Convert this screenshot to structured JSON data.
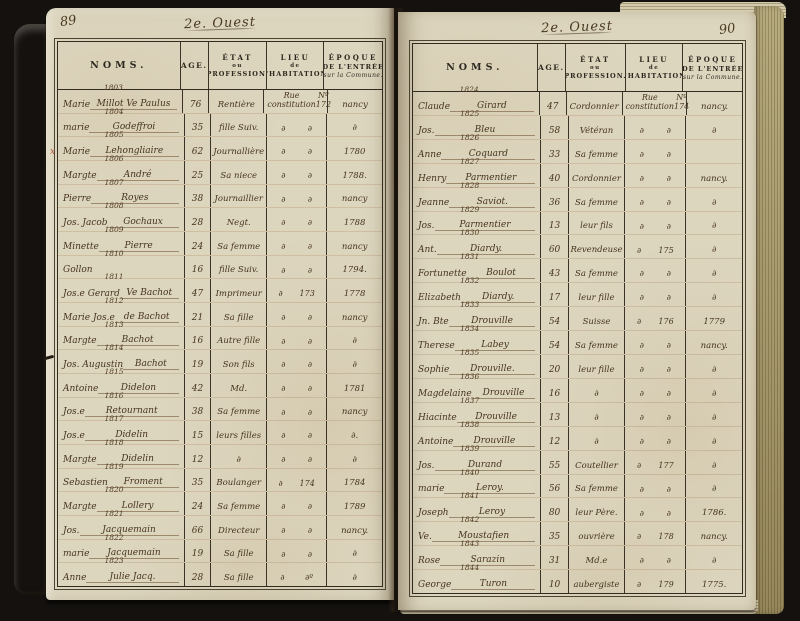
{
  "document_type": "handwritten population register (two-page spread)",
  "colors": {
    "background": "#14110e",
    "paper": "#ddd6bf",
    "ink": "#46341e",
    "border": "#322b20",
    "rule_red": "#b0553a"
  },
  "table_header": {
    "noms": "NOMS.",
    "age": "AGE.",
    "etat": {
      "l1": "ÉTAT",
      "l2": "ou",
      "l3": "PROFESSION."
    },
    "lieu": {
      "l1": "LIEU",
      "l2": "de",
      "l3": "L'HABITATION."
    },
    "epoque": {
      "l1": "ÉPOQUE",
      "l2": "DE L'ENTRÉE",
      "l3": "sur la Commune."
    }
  },
  "left_page": {
    "folio": "89",
    "heading": "2e. Ouest",
    "rows": [
      {
        "num": "1803",
        "first": "Marie",
        "last": "Millot Ve Paulus",
        "age": "76",
        "etat": "Rentière",
        "lieu": "Rue constitution",
        "lieu_no": "Nº 172",
        "epoque": "nancy"
      },
      {
        "num": "1804",
        "first": "marie",
        "last": "Godeffroi",
        "age": "35",
        "etat": "fille Suiv.",
        "lieu": "∂",
        "lieu_no": "∂",
        "epoque": "∂"
      },
      {
        "num": "1805",
        "first": "Marie",
        "last": "Lehongliaire",
        "age": "62",
        "etat": "Journallière",
        "lieu": "∂",
        "lieu_no": "∂",
        "epoque": "1780"
      },
      {
        "num": "1806",
        "first": "Margte",
        "last": "André",
        "age": "25",
        "etat": "Sa niece",
        "lieu": "∂",
        "lieu_no": "∂",
        "epoque": "1788."
      },
      {
        "num": "1807",
        "first": "Pierre",
        "last": "Royes",
        "age": "38",
        "etat": "Journaillier",
        "lieu": "∂",
        "lieu_no": "∂",
        "epoque": "nancy"
      },
      {
        "num": "1808",
        "first": "Jos. Jacob",
        "last": "Gochaux",
        "age": "28",
        "etat": "Negt.",
        "lieu": "∂",
        "lieu_no": "∂",
        "epoque": "1788"
      },
      {
        "num": "1809",
        "first": "Minette",
        "last": "Pierre",
        "age": "24",
        "etat": "Sa femme",
        "lieu": "∂",
        "lieu_no": "∂",
        "epoque": "nancy"
      },
      {
        "num": "1810",
        "first": "Gollon",
        "last": "",
        "age": "16",
        "etat": "fille Suiv.",
        "lieu": "∂",
        "lieu_no": "∂",
        "epoque": "1794."
      },
      {
        "num": "1811",
        "first": "Jos.e Gerard",
        "last": "Ve Bachot",
        "age": "47",
        "etat": "Imprimeur",
        "lieu": "∂",
        "lieu_no": "173",
        "epoque": "1778"
      },
      {
        "num": "1812",
        "first": "Marie Jos.e",
        "last": "de Bachot",
        "age": "21",
        "etat": "Sa fille",
        "lieu": "∂",
        "lieu_no": "∂",
        "epoque": "nancy"
      },
      {
        "num": "1813",
        "first": "Margte",
        "last": "Bachot",
        "age": "16",
        "etat": "Autre fille",
        "lieu": "∂",
        "lieu_no": "∂",
        "epoque": "∂"
      },
      {
        "num": "1814",
        "first": "Jos. Augustin",
        "last": "Bachot",
        "age": "19",
        "etat": "Son fils",
        "lieu": "∂",
        "lieu_no": "∂",
        "epoque": "∂"
      },
      {
        "num": "1815",
        "first": "Antoine",
        "last": "Didelon",
        "age": "42",
        "etat": "Md.",
        "lieu": "∂",
        "lieu_no": "∂",
        "epoque": "1781"
      },
      {
        "num": "1816",
        "first": "Jos.e",
        "last": "Retournant",
        "age": "38",
        "etat": "Sa femme",
        "lieu": "∂",
        "lieu_no": "∂",
        "epoque": "nancy"
      },
      {
        "num": "1817",
        "first": "Jos.e",
        "last": "Didelin",
        "age": "15",
        "etat": "leurs filles",
        "lieu": "∂",
        "lieu_no": "∂",
        "epoque": "∂."
      },
      {
        "num": "1818",
        "first": "Margte",
        "last": "Didelin",
        "age": "12",
        "etat": "∂",
        "lieu": "∂",
        "lieu_no": "∂",
        "epoque": "∂"
      },
      {
        "num": "1819",
        "first": "Sebastien",
        "last": "Froment",
        "age": "35",
        "etat": "Boulanger",
        "lieu": "∂",
        "lieu_no": "174",
        "epoque": "1784"
      },
      {
        "num": "1820",
        "first": "Margte",
        "last": "Lollery",
        "age": "24",
        "etat": "Sa femme",
        "lieu": "∂",
        "lieu_no": "∂",
        "epoque": "1789"
      },
      {
        "num": "1821",
        "first": "Jos.",
        "last": "Jacquemain",
        "age": "66",
        "etat": "Directeur",
        "lieu": "∂",
        "lieu_no": "∂",
        "epoque": "nancy."
      },
      {
        "num": "1822",
        "first": "marie",
        "last": "Jacquemain",
        "age": "19",
        "etat": "Sa fille",
        "lieu": "∂",
        "lieu_no": "∂",
        "epoque": "∂"
      },
      {
        "num": "1823",
        "first": "Anne",
        "last": "Julie Jacq.",
        "age": "28",
        "etat": "Sa fille",
        "lieu": "∂",
        "lieu_no": "∂º",
        "epoque": "∂"
      }
    ]
  },
  "right_page": {
    "folio": "90",
    "heading": "2e. Ouest",
    "rows": [
      {
        "num": "1824",
        "first": "Claude",
        "last": "Girard",
        "age": "47",
        "etat": "Cordonnier",
        "lieu": "Rue constitution",
        "lieu_no": "Nº 174",
        "epoque": "nancy."
      },
      {
        "num": "1825",
        "first": "Jos.",
        "last": "Bleu",
        "age": "58",
        "etat": "Vétéran",
        "lieu": "∂",
        "lieu_no": "∂",
        "epoque": "∂"
      },
      {
        "num": "1826",
        "first": "Anne",
        "last": "Coquard",
        "age": "33",
        "etat": "Sa femme",
        "lieu": "∂",
        "lieu_no": "∂",
        "epoque": ""
      },
      {
        "num": "1827",
        "first": "Henry",
        "last": "Parmentier",
        "age": "40",
        "etat": "Cordonnier",
        "lieu": "∂",
        "lieu_no": "∂",
        "epoque": "nancy."
      },
      {
        "num": "1828",
        "first": "Jeanne",
        "last": "Saviot.",
        "age": "36",
        "etat": "Sa femme",
        "lieu": "∂",
        "lieu_no": "∂",
        "epoque": "∂"
      },
      {
        "num": "1829",
        "first": "Jos.",
        "last": "Parmentier",
        "age": "13",
        "etat": "leur fils",
        "lieu": "∂",
        "lieu_no": "∂",
        "epoque": "∂"
      },
      {
        "num": "1830",
        "first": "Ant.",
        "last": "Diardy.",
        "age": "60",
        "etat": "Revendeuse",
        "lieu": "∂",
        "lieu_no": "175",
        "epoque": "∂"
      },
      {
        "num": "1831",
        "first": "Fortunette",
        "last": "Boulot",
        "age": "43",
        "etat": "Sa femme",
        "lieu": "∂",
        "lieu_no": "∂",
        "epoque": "∂"
      },
      {
        "num": "1832",
        "first": "Elizabeth",
        "last": "Diardy.",
        "age": "17",
        "etat": "leur fille",
        "lieu": "∂",
        "lieu_no": "∂",
        "epoque": "∂"
      },
      {
        "num": "1833",
        "first": "Jn. Bte",
        "last": "Drouville",
        "age": "54",
        "etat": "Suisse",
        "lieu": "∂",
        "lieu_no": "176",
        "epoque": "1779"
      },
      {
        "num": "1834",
        "first": "Therese",
        "last": "Labey",
        "age": "54",
        "etat": "Sa femme",
        "lieu": "∂",
        "lieu_no": "∂",
        "epoque": "nancy."
      },
      {
        "num": "1835",
        "first": "Sophie",
        "last": "Drouville.",
        "age": "20",
        "etat": "leur fille",
        "lieu": "∂",
        "lieu_no": "∂",
        "epoque": "∂"
      },
      {
        "num": "1836",
        "first": "Magdelaine",
        "last": "Drouville",
        "age": "16",
        "etat": "∂",
        "lieu": "∂",
        "lieu_no": "∂",
        "epoque": "∂"
      },
      {
        "num": "1837",
        "first": "Hiacinte",
        "last": "Drouville",
        "age": "13",
        "etat": "∂",
        "lieu": "∂",
        "lieu_no": "∂",
        "epoque": "∂"
      },
      {
        "num": "1838",
        "first": "Antoine",
        "last": "Drouville",
        "age": "12",
        "etat": "∂",
        "lieu": "∂",
        "lieu_no": "∂",
        "epoque": "∂"
      },
      {
        "num": "1839",
        "first": "Jos.",
        "last": "Durand",
        "age": "55",
        "etat": "Coutellier",
        "lieu": "∂",
        "lieu_no": "177",
        "epoque": "∂"
      },
      {
        "num": "1840",
        "first": "marie",
        "last": "Leroy.",
        "age": "56",
        "etat": "Sa femme",
        "lieu": "∂",
        "lieu_no": "∂",
        "epoque": "∂"
      },
      {
        "num": "1841",
        "first": "Joseph",
        "last": "Leroy",
        "age": "80",
        "etat": "leur Père.",
        "lieu": "∂",
        "lieu_no": "∂",
        "epoque": "1786."
      },
      {
        "num": "1842",
        "first": "Ve.",
        "last": "Moustafien",
        "age": "35",
        "etat": "ouvrière",
        "lieu": "∂",
        "lieu_no": "178",
        "epoque": "nancy."
      },
      {
        "num": "1843",
        "first": "Rose",
        "last": "Sarazin",
        "age": "31",
        "etat": "Md.e",
        "lieu": "∂",
        "lieu_no": "∂",
        "epoque": "∂"
      },
      {
        "num": "1844",
        "first": "George",
        "last": "Turon",
        "age": "10",
        "etat": "aubergiste",
        "lieu": "∂",
        "lieu_no": "179",
        "epoque": "1775."
      }
    ]
  },
  "margin_marks": {
    "red_cross": "x"
  }
}
